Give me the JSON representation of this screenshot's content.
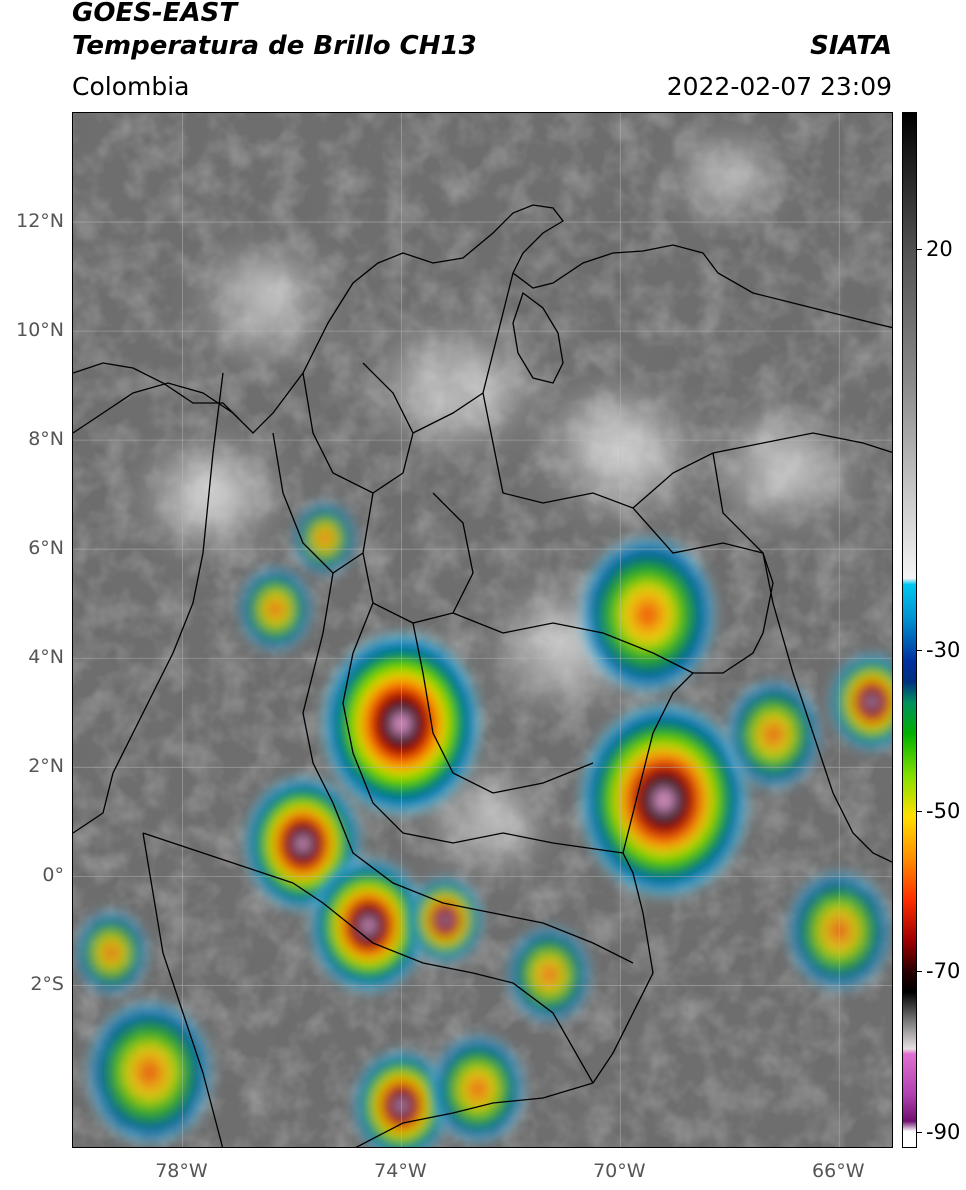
{
  "header": {
    "satellite": "GOES-EAST",
    "product": "Temperatura de Brillo CH13",
    "region": "Colombia",
    "org": "SIATA",
    "datetime": "2022-02-07 23:09"
  },
  "map": {
    "lon_range": [
      -80,
      -65
    ],
    "lat_range": [
      -5,
      14
    ],
    "lat_ticks": [
      {
        "value": 12,
        "label": "12°N"
      },
      {
        "value": 10,
        "label": "10°N"
      },
      {
        "value": 8,
        "label": "8°N"
      },
      {
        "value": 6,
        "label": "6°N"
      },
      {
        "value": 4,
        "label": "4°N"
      },
      {
        "value": 2,
        "label": "2°N"
      },
      {
        "value": 0,
        "label": "0°"
      },
      {
        "value": -2,
        "label": "2°S"
      }
    ],
    "lon_ticks": [
      {
        "value": -78,
        "label": "78°W"
      },
      {
        "value": -74,
        "label": "74°W"
      },
      {
        "value": -70,
        "label": "70°W"
      },
      {
        "value": -66,
        "label": "66°W"
      }
    ],
    "gridlines": true,
    "storm_cells": [
      {
        "lon": -74.0,
        "lat": 2.8,
        "r": 1.5,
        "intensity": 1.0
      },
      {
        "lon": -69.2,
        "lat": 1.4,
        "r": 1.6,
        "intensity": 0.85
      },
      {
        "lon": -75.8,
        "lat": 0.6,
        "r": 1.1,
        "intensity": 0.9
      },
      {
        "lon": -74.6,
        "lat": -0.9,
        "r": 1.1,
        "intensity": 0.9
      },
      {
        "lon": -73.2,
        "lat": -0.8,
        "r": 0.7,
        "intensity": 0.85
      },
      {
        "lon": -74.0,
        "lat": -4.2,
        "r": 0.9,
        "intensity": 0.85
      },
      {
        "lon": -69.5,
        "lat": 4.8,
        "r": 1.3,
        "intensity": 0.75
      },
      {
        "lon": -65.4,
        "lat": 3.2,
        "r": 0.8,
        "intensity": 0.8
      },
      {
        "lon": -78.6,
        "lat": -3.6,
        "r": 1.2,
        "intensity": 0.6
      },
      {
        "lon": -72.6,
        "lat": -3.9,
        "r": 0.9,
        "intensity": 0.6
      },
      {
        "lon": -75.4,
        "lat": 6.2,
        "r": 0.6,
        "intensity": 0.5
      },
      {
        "lon": -76.3,
        "lat": 4.9,
        "r": 0.7,
        "intensity": 0.55
      },
      {
        "lon": -67.2,
        "lat": 2.6,
        "r": 0.9,
        "intensity": 0.55
      },
      {
        "lon": -66.0,
        "lat": -1.0,
        "r": 1.0,
        "intensity": 0.5
      },
      {
        "lon": -71.3,
        "lat": -1.8,
        "r": 0.8,
        "intensity": 0.5
      },
      {
        "lon": -79.3,
        "lat": -1.4,
        "r": 0.7,
        "intensity": 0.5
      }
    ],
    "cloud_patches": [
      {
        "lon": -76.5,
        "lat": 10.5,
        "r": 1.4
      },
      {
        "lon": -73.0,
        "lat": 9.0,
        "r": 1.6
      },
      {
        "lon": -70.0,
        "lat": 7.8,
        "r": 1.6
      },
      {
        "lon": -67.0,
        "lat": 7.5,
        "r": 1.4
      },
      {
        "lon": -71.0,
        "lat": 4.2,
        "r": 1.5
      },
      {
        "lon": -77.5,
        "lat": 7.0,
        "r": 1.4
      },
      {
        "lon": -68.0,
        "lat": 12.8,
        "r": 1.0
      },
      {
        "lon": -72.5,
        "lat": 1.0,
        "r": 1.2
      }
    ]
  },
  "colorbar": {
    "ticks": [
      {
        "value": 20,
        "label": "20"
      },
      {
        "value": -30,
        "label": "-30"
      },
      {
        "value": -50,
        "label": "-50"
      },
      {
        "value": -70,
        "label": "-70"
      },
      {
        "value": -90,
        "label": "-90"
      }
    ],
    "range": [
      -92,
      37
    ]
  },
  "colors": {
    "ocean_gray": "#6e6e6e",
    "land_gray": "#8a8a8a",
    "cloud_white": "#f2f2f2",
    "border": "#000000"
  }
}
